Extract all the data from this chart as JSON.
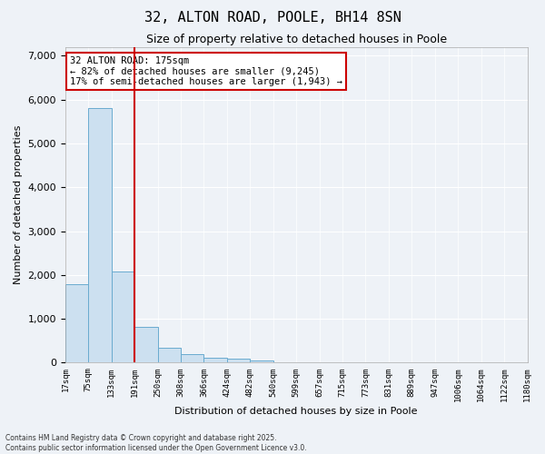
{
  "title": "32, ALTON ROAD, POOLE, BH14 8SN",
  "subtitle": "Size of property relative to detached houses in Poole",
  "xlabel": "Distribution of detached houses by size in Poole",
  "ylabel": "Number of detached properties",
  "bins": [
    "17sqm",
    "75sqm",
    "133sqm",
    "191sqm",
    "250sqm",
    "308sqm",
    "366sqm",
    "424sqm",
    "482sqm",
    "540sqm",
    "599sqm",
    "657sqm",
    "715sqm",
    "773sqm",
    "831sqm",
    "889sqm",
    "947sqm",
    "1006sqm",
    "1064sqm",
    "1122sqm",
    "1180sqm"
  ],
  "values": [
    1800,
    5800,
    2090,
    820,
    335,
    205,
    120,
    95,
    60,
    10,
    0,
    0,
    0,
    0,
    0,
    0,
    0,
    0,
    0,
    0
  ],
  "bar_color": "#cce0f0",
  "bar_edgecolor": "#6aabcf",
  "vline_color": "#cc0000",
  "annotation_text": "32 ALTON ROAD: 175sqm\n← 82% of detached houses are smaller (9,245)\n17% of semi-detached houses are larger (1,943) →",
  "annotation_box_color": "#cc0000",
  "ylim": [
    0,
    7200
  ],
  "yticks": [
    0,
    1000,
    2000,
    3000,
    4000,
    5000,
    6000,
    7000
  ],
  "background_color": "#eef2f7",
  "grid_color": "#ffffff",
  "footer1": "Contains HM Land Registry data © Crown copyright and database right 2025.",
  "footer2": "Contains public sector information licensed under the Open Government Licence v3.0."
}
